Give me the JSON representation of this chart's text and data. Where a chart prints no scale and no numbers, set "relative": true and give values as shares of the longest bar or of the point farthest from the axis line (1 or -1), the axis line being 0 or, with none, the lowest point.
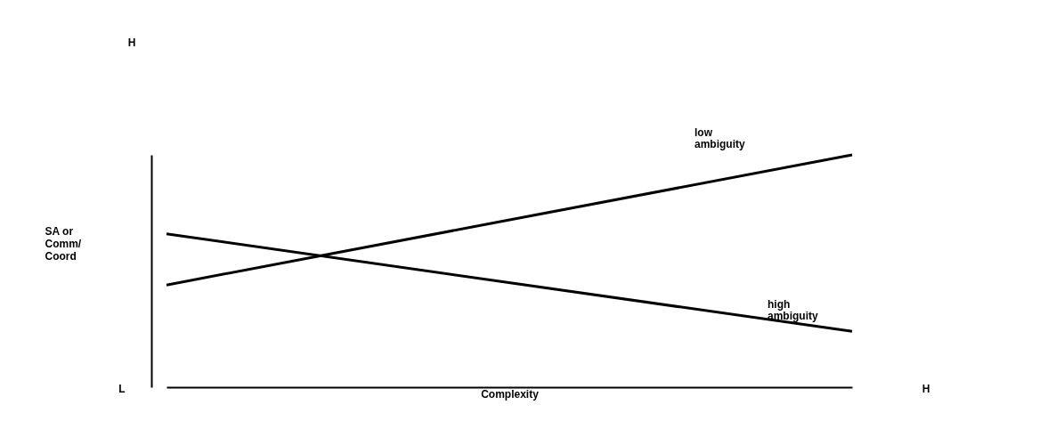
{
  "chart_data": {
    "type": "line",
    "relative": true,
    "xlabel": "Complexity",
    "ylabel": "SA or Comm/ Coord",
    "categories": [
      null,
      null
    ],
    "series": [
      {
        "name": "low ambiguity",
        "color": "#000000",
        "values": [
          0.44,
          1
        ]
      },
      {
        "name": "high ambiguity",
        "color": "#000000",
        "values": [
          0.66,
          0.24
        ]
      }
    ],
    "annotations": [
      "H",
      "L",
      "H"
    ],
    "grid": false,
    "legend": false,
    "marker": "none",
    "line_style": "solid"
  }
}
